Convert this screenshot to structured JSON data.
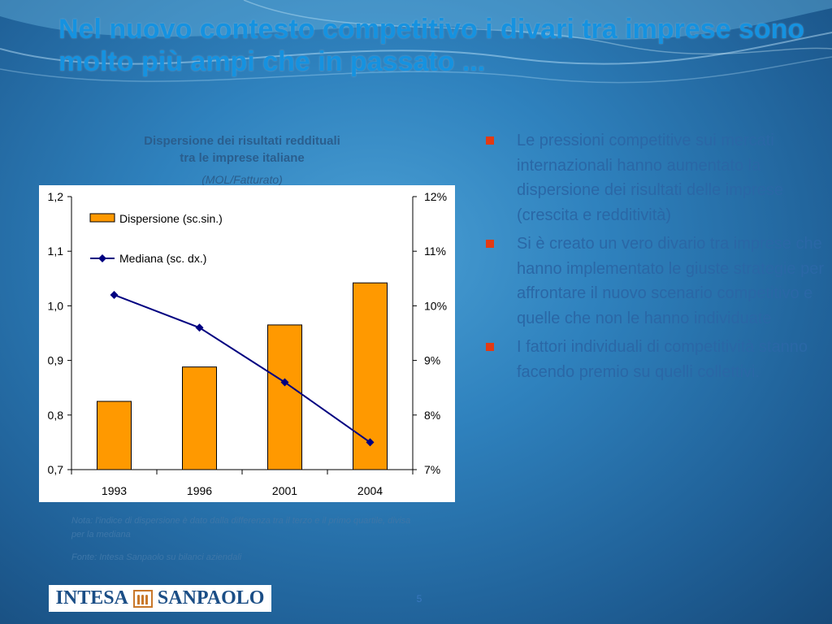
{
  "slide": {
    "title": "Nel nuovo contesto competitivo i divari tra imprese sono molto più ampi che in passato ...",
    "page_number": "5"
  },
  "chart_header": {
    "title_line1": "Dispersione dei risultati reddituali",
    "title_line2": "tra le imprese italiane",
    "subtitle": "(MOL/Fatturato)"
  },
  "chart_data": {
    "type": "bar",
    "categories": [
      "1993",
      "1996",
      "2001",
      "2004"
    ],
    "series": [
      {
        "name": "Dispersione (sc.sin.)",
        "type": "bar",
        "axis": "left",
        "values": [
          0.825,
          0.888,
          0.965,
          1.042
        ]
      },
      {
        "name": "Mediana (sc. dx.)",
        "type": "line",
        "axis": "right",
        "values": [
          10.2,
          9.6,
          8.6,
          7.5
        ]
      }
    ],
    "ylim_left": [
      0.7,
      1.2
    ],
    "ylim_right": [
      7,
      12
    ],
    "yticks_left": [
      "0,7",
      "0,8",
      "0,9",
      "1,0",
      "1,1",
      "1,2"
    ],
    "yticks_right": [
      "7%",
      "8%",
      "9%",
      "10%",
      "11%",
      "12%"
    ],
    "legend": "top-left",
    "colors": {
      "bar": "#ff9900",
      "bar_edge": "#000000",
      "line": "#000080"
    }
  },
  "notes": {
    "note": "Nota: l'indice di dispersione  è dato dalla differenza tra il terzo e il primo quartile, divisa per la mediana",
    "source": "Fonte: Intesa Sanpaolo su bilanci aziendali"
  },
  "bullets": [
    "Le pressioni competitive sui mercati internazionali hanno aumentato la dispersione dei risultati delle imprese (crescita e redditività)",
    "Si è creato un vero divario tra imprese che hanno implementato le giuste strategie per affrontare il nuovo scenario competitivo e quelle che non le hanno individuate",
    "I fattori individuali di competitività stanno facendo premio su quelli collettivi."
  ],
  "logo": {
    "left": "INTESA",
    "right": "SANPAOLO",
    "icon": "intesa-sanpaolo-arches-icon"
  },
  "colors": {
    "title": "#1592e0",
    "bullet_text": "#2a67a6",
    "bullet_marker": "#e23a14"
  }
}
